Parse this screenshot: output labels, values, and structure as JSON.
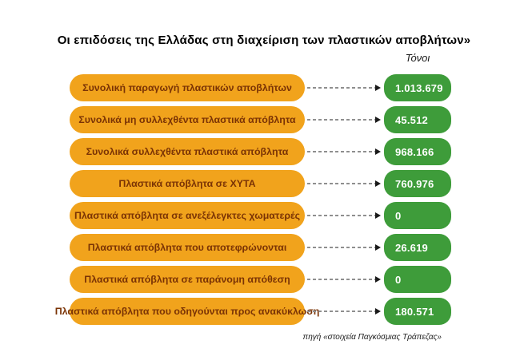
{
  "title": "Οι επιδόσεις της Ελλάδας στη διαχείριση των πλαστικών αποβλήτων»",
  "unit_label": "Τόνοι",
  "source": "πηγή «στοιχεία Παγκόσμιας Τράπεζας»",
  "colors": {
    "label_bg": "#F1A31C",
    "label_text": "#7A3305",
    "value_bg": "#3E9C3A",
    "value_text": "#FFFFFF",
    "arrow": "#8F8F8F",
    "arrowhead": "#1A1A1A",
    "background": "#FFFFFF",
    "title_text": "#000000"
  },
  "rows": [
    {
      "label": "Συνολική παραγωγή πλαστικών αποβλήτων",
      "value": "1.013.679"
    },
    {
      "label": "Συνολικά μη συλλεχθέντα πλαστικά απόβλητα",
      "value": "45.512"
    },
    {
      "label": "Συνολικά συλλεχθέντα πλαστικά απόβλητα",
      "value": "968.166"
    },
    {
      "label": "Πλαστικά απόβλητα σε ΧΥΤΑ",
      "value": "760.976"
    },
    {
      "label": "Πλαστικά απόβλητα σε ανεξέλεγκτες χωματερές",
      "value": "0"
    },
    {
      "label": "Πλαστικά απόβλητα που αποτεφρώνονται",
      "value": "26.619"
    },
    {
      "label": "Πλαστικά απόβλητα σε παράνομη απόθεση",
      "value": "0"
    },
    {
      "label": "Πλαστικά απόβλητα που οδηγούνται προς ανακύκλωση",
      "value": "180.571"
    }
  ],
  "chart_data": {
    "type": "table",
    "title": "Οι επιδόσεις της Ελλάδας στη διαχείριση των πλαστικών αποβλήτων»",
    "unit": "Τόνοι",
    "source": "πηγή «στοιχεία Παγκόσμιας Τράπεζας»",
    "categories": [
      "Συνολική παραγωγή πλαστικών αποβλήτων",
      "Συνολικά μη συλλεχθέντα πλαστικά απόβλητα",
      "Συνολικά συλλεχθέντα πλαστικά απόβλητα",
      "Πλαστικά απόβλητα σε ΧΥΤΑ",
      "Πλαστικά απόβλητα σε ανεξέλεγκτες χωματερές",
      "Πλαστικά απόβλητα που αποτεφρώνονται",
      "Πλαστικά απόβλητα σε παράνομη απόθεση",
      "Πλαστικά απόβλητα που οδηγούνται προς ανακύκλωση"
    ],
    "values": [
      1013679,
      45512,
      968166,
      760976,
      0,
      26619,
      0,
      180571
    ],
    "value_labels": [
      "1.013.679",
      "45.512",
      "968.166",
      "760.976",
      "0",
      "26.619",
      "0",
      "180.571"
    ]
  }
}
